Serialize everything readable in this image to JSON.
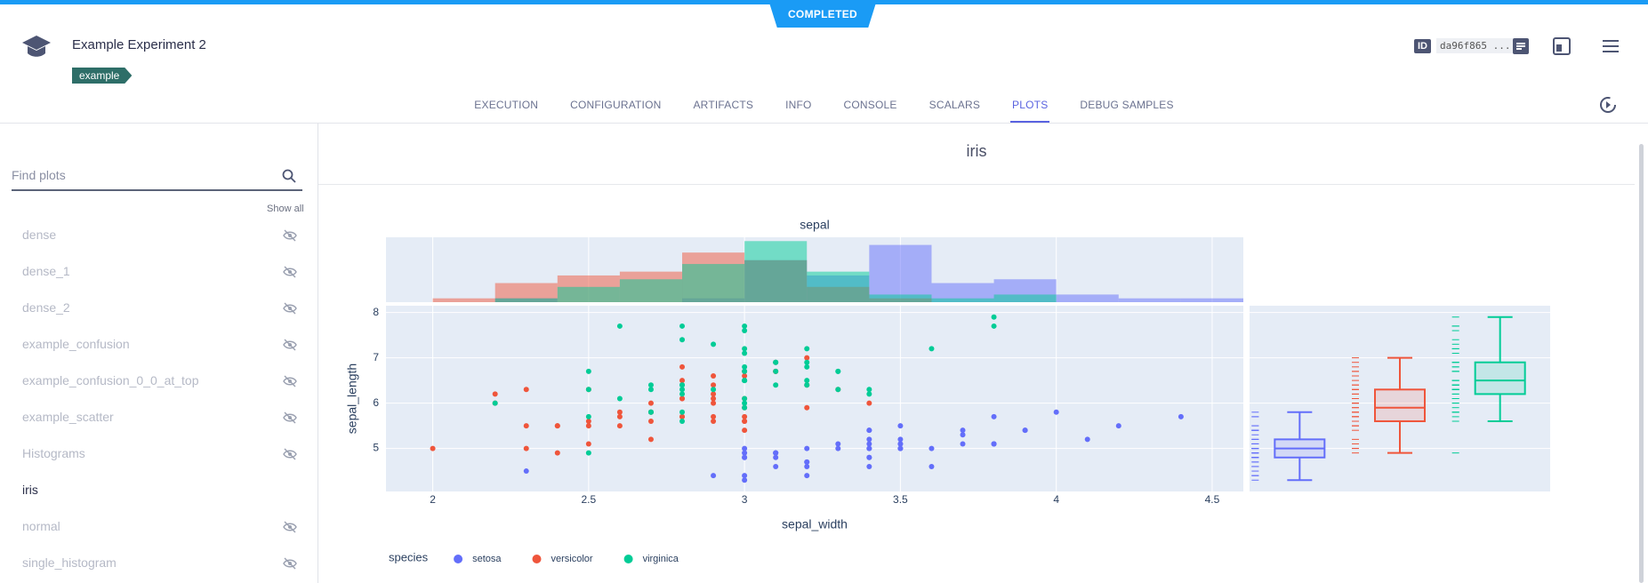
{
  "header": {
    "status": "COMPLETED",
    "title": "Example Experiment 2",
    "tag": "example",
    "id_label": "ID",
    "id": "da96f865 ..."
  },
  "tabs": [
    "EXECUTION",
    "CONFIGURATION",
    "ARTIFACTS",
    "INFO",
    "CONSOLE",
    "SCALARS",
    "PLOTS",
    "DEBUG SAMPLES"
  ],
  "active_tab": "PLOTS",
  "sidebar": {
    "search_placeholder": "Find plots",
    "show_all": "Show all",
    "items": [
      {
        "label": "dense",
        "hidden": true
      },
      {
        "label": "dense_1",
        "hidden": true
      },
      {
        "label": "dense_2",
        "hidden": true
      },
      {
        "label": "example_confusion",
        "hidden": true
      },
      {
        "label": "example_confusion_0_0_at_top",
        "hidden": true
      },
      {
        "label": "example_scatter",
        "hidden": true
      },
      {
        "label": "Histograms",
        "hidden": true
      },
      {
        "label": "iris",
        "hidden": false
      },
      {
        "label": "normal",
        "hidden": true
      },
      {
        "label": "single_histogram",
        "hidden": true
      }
    ]
  },
  "panel_title": "iris",
  "chart_data": {
    "type": "scatter",
    "title": "sepal",
    "x_label": "sepal_width",
    "y_label": "sepal_length",
    "legend_title": "species",
    "xlim": [
      1.85,
      4.6
    ],
    "xticks": [
      2,
      2.5,
      3,
      3.5,
      4,
      4.5
    ],
    "ylim": [
      4.05,
      8.15
    ],
    "yticks": [
      5,
      6,
      7,
      8
    ],
    "grid": true,
    "bins": [
      2.0,
      2.2,
      2.4,
      2.6,
      2.8,
      3.0,
      3.2,
      3.4,
      3.6,
      3.8,
      4.0,
      4.2,
      4.4,
      4.6
    ],
    "hist_ylim": [
      0,
      17
    ],
    "series": [
      {
        "name": "setosa",
        "color": "#636efa",
        "x": [
          3.5,
          3.0,
          3.2,
          3.1,
          3.6,
          3.9,
          3.4,
          3.4,
          2.9,
          3.1,
          3.7,
          3.4,
          3.0,
          3.0,
          4.0,
          4.4,
          3.9,
          3.5,
          3.8,
          3.8,
          3.4,
          3.7,
          3.6,
          3.3,
          3.4,
          3.0,
          3.4,
          3.5,
          3.4,
          3.2,
          3.1,
          3.4,
          4.1,
          4.2,
          3.1,
          3.2,
          3.5,
          3.1,
          3.0,
          3.4,
          3.5,
          2.3,
          3.2,
          3.5,
          3.8,
          3.0,
          3.8,
          3.2,
          3.7,
          3.3
        ],
        "y": [
          5.1,
          4.9,
          4.7,
          4.6,
          5.0,
          5.4,
          4.6,
          5.0,
          4.4,
          4.9,
          5.4,
          4.8,
          4.8,
          4.3,
          5.8,
          5.7,
          5.4,
          5.1,
          5.7,
          5.1,
          5.4,
          5.1,
          4.6,
          5.1,
          4.8,
          5.0,
          5.0,
          5.2,
          5.2,
          4.7,
          4.8,
          5.4,
          5.2,
          5.5,
          4.9,
          5.0,
          5.5,
          4.9,
          4.4,
          5.1,
          5.0,
          4.5,
          4.4,
          5.0,
          5.1,
          4.8,
          5.1,
          4.6,
          5.3,
          5.0
        ],
        "hist_counts": [
          0,
          1,
          0,
          0,
          1,
          11,
          7,
          15,
          5,
          6,
          2,
          1,
          1
        ],
        "box": {
          "lower": 4.3,
          "q1": 4.8,
          "median": 5.0,
          "q3": 5.2,
          "upper": 5.8
        }
      },
      {
        "name": "versicolor",
        "color": "#ef553b",
        "x": [
          3.2,
          3.2,
          3.1,
          2.3,
          2.8,
          2.8,
          3.3,
          2.4,
          2.9,
          2.7,
          2.0,
          3.0,
          2.2,
          2.9,
          2.9,
          3.1,
          3.0,
          2.7,
          2.2,
          2.5,
          3.2,
          2.8,
          2.5,
          2.8,
          2.9,
          3.0,
          2.8,
          3.0,
          2.9,
          2.6,
          2.4,
          2.4,
          2.7,
          2.7,
          3.0,
          3.4,
          3.1,
          2.3,
          3.0,
          2.5,
          2.6,
          3.0,
          2.6,
          2.3,
          2.7,
          3.0,
          2.9,
          2.9,
          2.5,
          2.8
        ],
        "y": [
          7.0,
          6.4,
          6.9,
          5.5,
          6.5,
          5.7,
          6.3,
          4.9,
          6.6,
          5.2,
          5.0,
          5.9,
          6.0,
          6.1,
          5.6,
          6.7,
          5.6,
          5.8,
          6.2,
          5.6,
          5.9,
          6.1,
          6.3,
          6.1,
          6.4,
          6.6,
          6.8,
          6.7,
          6.0,
          5.7,
          5.5,
          5.5,
          5.8,
          6.0,
          5.4,
          6.0,
          6.7,
          6.3,
          5.6,
          5.5,
          5.5,
          6.1,
          5.8,
          5.0,
          5.6,
          5.7,
          5.7,
          6.2,
          5.1,
          5.7
        ],
        "hist_counts": [
          1,
          5,
          7,
          8,
          13,
          11,
          4,
          1,
          0,
          0,
          0,
          0,
          0
        ],
        "box": {
          "lower": 4.9,
          "q1": 5.6,
          "median": 5.9,
          "q3": 6.3,
          "upper": 7.0
        }
      },
      {
        "name": "virginica",
        "color": "#00cc96",
        "x": [
          3.3,
          2.7,
          3.0,
          2.9,
          3.0,
          3.0,
          2.5,
          2.9,
          2.5,
          3.6,
          3.2,
          2.7,
          3.0,
          2.5,
          2.8,
          3.2,
          3.0,
          3.8,
          2.6,
          2.2,
          3.2,
          2.8,
          2.8,
          2.7,
          3.3,
          3.2,
          2.8,
          3.0,
          2.8,
          3.0,
          2.8,
          3.8,
          2.8,
          2.8,
          2.6,
          3.0,
          3.4,
          3.1,
          3.0,
          3.1,
          3.1,
          3.1,
          2.7,
          3.2,
          3.3,
          3.0,
          2.5,
          3.0,
          3.4,
          3.0
        ],
        "y": [
          6.3,
          5.8,
          7.1,
          6.3,
          6.5,
          7.6,
          4.9,
          7.3,
          6.7,
          7.2,
          6.5,
          6.4,
          6.8,
          5.7,
          5.8,
          6.4,
          6.5,
          7.7,
          7.7,
          6.0,
          6.9,
          5.6,
          7.7,
          6.3,
          6.7,
          7.2,
          6.2,
          6.1,
          6.4,
          7.2,
          7.4,
          7.9,
          6.4,
          6.3,
          6.1,
          7.7,
          6.3,
          6.4,
          6.0,
          6.9,
          6.7,
          6.9,
          5.8,
          6.8,
          6.7,
          6.7,
          6.3,
          6.5,
          6.2,
          5.9
        ],
        "hist_counts": [
          0,
          1,
          4,
          6,
          10,
          16,
          8,
          2,
          1,
          2,
          0,
          0,
          0
        ],
        "box": {
          "lower": 5.6,
          "q1": 6.2,
          "median": 6.5,
          "q3": 6.9,
          "upper": 7.9
        }
      }
    ]
  }
}
